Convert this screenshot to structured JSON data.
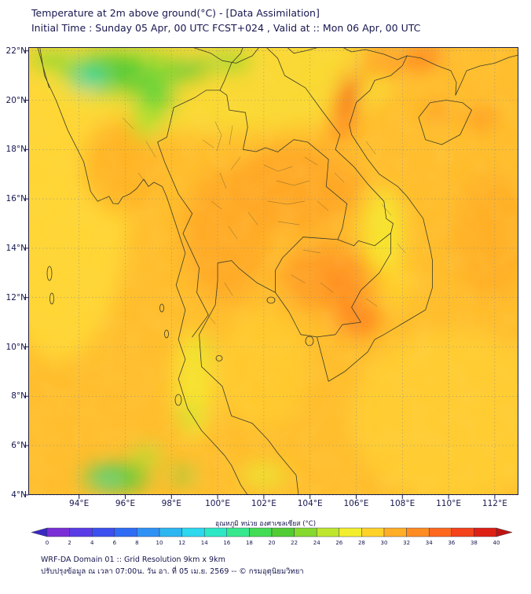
{
  "header": {
    "title_line1": "Temperature at 2m above ground(°C) - [Data Assimilation]",
    "title_line2": "Initial Time : Sunday 05 Apr, 00 UTC FCST+024 , Valid at :: Mon 06 Apr, 00 UTC"
  },
  "map": {
    "lat_ticks": [
      "22°N",
      "20°N",
      "18°N",
      "16°N",
      "14°N",
      "12°N",
      "10°N",
      "8°N",
      "6°N",
      "4°N"
    ],
    "lon_ticks": [
      "94°E",
      "96°E",
      "98°E",
      "100°E",
      "102°E",
      "104°E",
      "106°E",
      "108°E",
      "110°E",
      "112°E"
    ]
  },
  "colorbar": {
    "label": "อุณหภูมิ หน่วย องศาเซลเซียส (°C)",
    "ticks": [
      "0",
      "2",
      "4",
      "6",
      "8",
      "10",
      "12",
      "14",
      "16",
      "18",
      "20",
      "22",
      "24",
      "26",
      "28",
      "30",
      "32",
      "34",
      "36",
      "38",
      "40"
    ],
    "under_color": "#3A28C4",
    "over_color": "#BE1410",
    "segment_colors": [
      "#7A2FD6",
      "#5A3CE6",
      "#3C50F0",
      "#2E6CF5",
      "#2E92F5",
      "#2EB6F0",
      "#2ED8EE",
      "#2EE8C4",
      "#38E88E",
      "#44DC54",
      "#52CC34",
      "#86D92E",
      "#BEE62E",
      "#F2EE2E",
      "#FFD22A",
      "#FFAE26",
      "#FF8C22",
      "#FF681E",
      "#F4421A",
      "#DE2014"
    ]
  },
  "footer": {
    "line1": "WRF-DA Domain 01 :: Grid Resolution 9km x 9km",
    "line2": "ปรับปรุงข้อมูล ณ เวลา 07:00น. วัน อา. ที่ 05 เม.ย. 2569 -- © กรมอุตุนิยมวิทยา"
  },
  "chart_data": {
    "type": "heatmap",
    "title": "Temperature at 2m above ground(°C) - [Data Assimilation]",
    "subtitle": "Initial Time : Sunday 05 Apr, 00 UTC FCST+024 , Valid at :: Mon 06 Apr, 00 UTC",
    "x_axis": {
      "ticks": [
        "94°E",
        "96°E",
        "98°E",
        "100°E",
        "102°E",
        "104°E",
        "106°E",
        "108°E",
        "110°E",
        "112°E"
      ],
      "range_deg_east": [
        92,
        113
      ]
    },
    "y_axis": {
      "ticks": [
        "22°N",
        "20°N",
        "18°N",
        "16°N",
        "14°N",
        "12°N",
        "10°N",
        "8°N",
        "6°N",
        "4°N"
      ],
      "range_deg_north": [
        4,
        22
      ]
    },
    "colorbar": {
      "label": "อุณหภูมิ หน่วย องศาเซลเซียส (°C)",
      "min": 0,
      "max": 40,
      "step": 2,
      "position": "bottom"
    },
    "grid": "dashed lat/lon every 2 degrees",
    "field_estimates": [
      {
        "region": "Northern Myanmar / Shan highlands (94-99E, 19.5-22N)",
        "temp_c": "20-26"
      },
      {
        "region": "Most land: Thailand, Laos, Cambodia, Myanmar lowlands",
        "temp_c": "30-34"
      },
      {
        "region": "Northwest Vietnam band (104.5-106E, 17.5-21.5N)",
        "temp_c": "34-38"
      },
      {
        "region": "Bay of Bengal / Andaman Sea (west of map)",
        "temp_c": "28-30"
      },
      {
        "region": "Gulf of Thailand and South China Sea",
        "temp_c": "28-30"
      },
      {
        "region": "Highlands near 4-5N, 96-98E (north Sumatra)",
        "temp_c": "20-24"
      },
      {
        "region": "Hainan area and far northeast hot spots",
        "temp_c": "34-38"
      }
    ]
  }
}
